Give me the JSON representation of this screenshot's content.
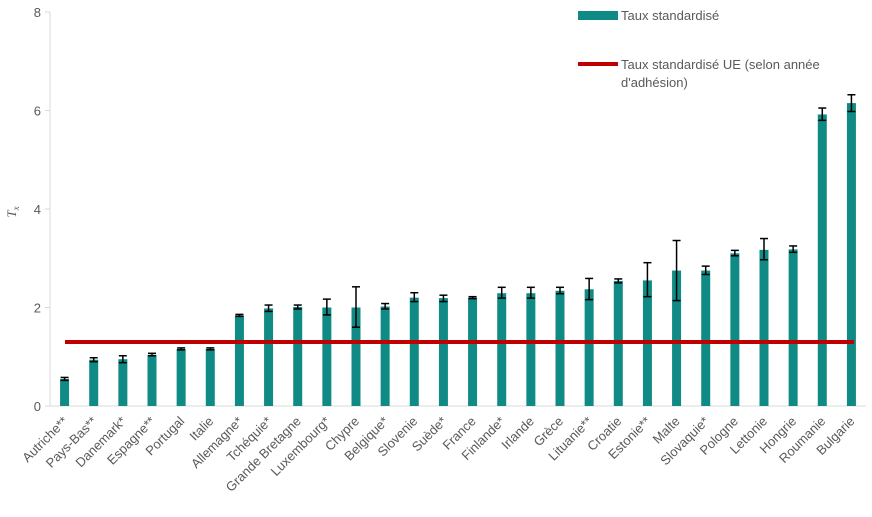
{
  "chart_data": {
    "type": "bar",
    "categories": [
      "Autriche**",
      "Pays-Bas**",
      "Danemark*",
      "Espagne**",
      "Portugal",
      "Italie",
      "Allemagne*",
      "Tchéquie*",
      "Grande Bretagne",
      "Luxembourg*",
      "Chypre",
      "Belgique*",
      "Slovenie",
      "Suède*",
      "France",
      "Finlande*",
      "Irlande",
      "Grèce",
      "Lituanie**",
      "Croatie",
      "Estonie**",
      "Malte",
      "Slovaquie*",
      "Pologne",
      "Lettonie",
      "Hongrie",
      "Roumanie",
      "Bulgarie"
    ],
    "series": [
      {
        "name": "Taux standardisé",
        "color": "#0f8a84",
        "values": [
          0.55,
          0.94,
          0.95,
          1.04,
          1.16,
          1.16,
          1.84,
          1.98,
          2.01,
          2.0,
          2.0,
          2.02,
          2.2,
          2.19,
          2.2,
          2.29,
          2.29,
          2.34,
          2.37,
          2.54,
          2.55,
          2.75,
          2.75,
          3.1,
          3.17,
          3.18,
          5.92,
          6.15
        ],
        "error_low": [
          0.52,
          0.9,
          0.88,
          1.02,
          1.14,
          1.14,
          1.82,
          1.92,
          1.97,
          1.85,
          1.6,
          1.97,
          2.12,
          2.12,
          2.18,
          2.19,
          2.19,
          2.28,
          2.16,
          2.5,
          2.22,
          2.14,
          2.67,
          3.05,
          2.97,
          3.12,
          5.8,
          5.98
        ],
        "error_high": [
          0.58,
          0.98,
          1.02,
          1.07,
          1.18,
          1.18,
          1.86,
          2.05,
          2.05,
          2.17,
          2.42,
          2.08,
          2.3,
          2.25,
          2.22,
          2.41,
          2.41,
          2.41,
          2.59,
          2.58,
          2.91,
          3.36,
          2.84,
          3.16,
          3.4,
          3.25,
          6.05,
          6.32
        ]
      },
      {
        "name": "Taux standardisé UE (selon année d'adhésion)",
        "type": "line",
        "color": "#c00000",
        "value": 1.3
      }
    ],
    "ylabel": "T",
    "ylabel_subscript": "x",
    "ylim": [
      0,
      8
    ],
    "yticks": [
      "0",
      "2",
      "4",
      "6",
      "8"
    ],
    "grid": false,
    "legend_placement": "top-right",
    "legend": {
      "bar_label": "Taux standardisé",
      "line_label_lines": [
        "Taux standardisé UE (selon année",
        "d'adhésion)"
      ]
    }
  }
}
